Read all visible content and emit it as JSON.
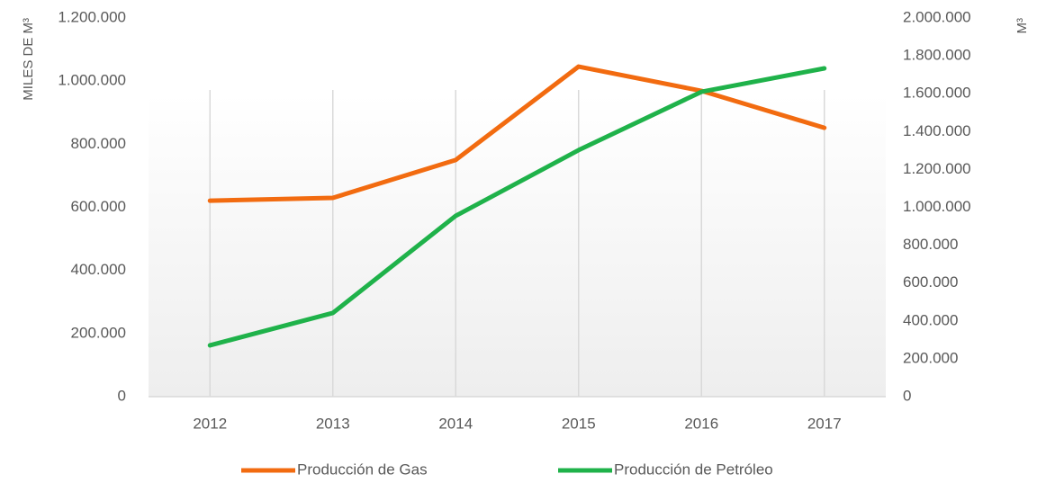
{
  "chart_data": {
    "type": "line",
    "y_label": "MILES DE M³",
    "y2_label": "M³",
    "categories": [
      "2012",
      "2013",
      "2014",
      "2015",
      "2016",
      "2017"
    ],
    "series": [
      {
        "name": "Producción de Gas",
        "color": "#f26b10",
        "values": [
          621000,
          630000,
          750000,
          1046000,
          969000,
          852000
        ]
      },
      {
        "name": "Producción de Petróleo",
        "color": "#1fb24a",
        "axis": "y2",
        "values": [
          271000,
          442000,
          955000,
          1302000,
          1610000,
          1734000
        ]
      }
    ],
    "ylim": [
      0,
      1200000
    ],
    "yticks": [
      0,
      {
        "value": 200000,
        "label": "200.000"
      },
      {
        "value": 400000,
        "label": "400.000"
      },
      {
        "value": 600000,
        "label": "600.000"
      },
      {
        "value": 800000,
        "label": "800.000"
      },
      {
        "value": 1000000,
        "label": "1.000.000"
      },
      {
        "value": 1200000,
        "label": "1.200.000"
      }
    ],
    "y2lim": [
      0,
      2000000
    ],
    "y2ticks": [
      0,
      {
        "value": 200000,
        "label": "200.000"
      },
      {
        "value": 400000,
        "label": "400.000"
      },
      {
        "value": 600000,
        "label": "600.000"
      },
      {
        "value": 800000,
        "label": "800.000"
      },
      {
        "value": 1000000,
        "label": "1.000.000"
      },
      {
        "value": 1200000,
        "label": "1.200.000"
      },
      {
        "value": 1400000,
        "label": "1.400.000"
      },
      {
        "value": 1600000,
        "label": "1.600.000"
      },
      {
        "value": 1800000,
        "label": "1.800.000"
      },
      {
        "value": 2000000,
        "label": "2.000.000"
      }
    ],
    "grid": true,
    "legend": "bottom"
  }
}
